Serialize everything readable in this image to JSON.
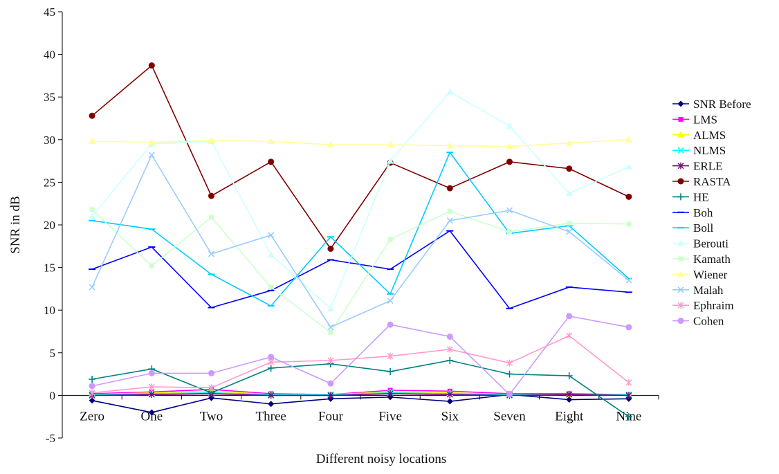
{
  "chart_data": {
    "type": "line",
    "title": "",
    "xlabel": "Different noisy locations",
    "ylabel": "SNR in dB",
    "ylim": [
      -5,
      45
    ],
    "yticks": [
      "-5",
      "0",
      "5",
      "10",
      "15",
      "20",
      "25",
      "30",
      "35",
      "40",
      "45"
    ],
    "categories": [
      "Zero",
      "One",
      "Two",
      "Three",
      "Four",
      "Five",
      "Six",
      "Seven",
      "Eight",
      "Nine"
    ],
    "grid": false,
    "legend_position": "right",
    "series": [
      {
        "name": "SNR Before",
        "color": "#000080",
        "marker": "diamond",
        "values": [
          -0.6,
          -2.0,
          -0.3,
          -1.0,
          -0.4,
          -0.2,
          -0.7,
          0.1,
          -0.5,
          -0.4
        ]
      },
      {
        "name": "LMS",
        "color": "#ff00ff",
        "marker": "square",
        "values": [
          0.2,
          0.4,
          0.7,
          0.2,
          0.1,
          0.6,
          0.5,
          0.2,
          0.2,
          0.1
        ]
      },
      {
        "name": "ALMS",
        "color": "#ffff00",
        "marker": "triangle",
        "values": [
          0.1,
          0.3,
          0.5,
          0.1,
          0.1,
          0.4,
          0.3,
          0.1,
          0.1,
          0.1
        ]
      },
      {
        "name": "NLMS",
        "color": "#00ffff",
        "marker": "x",
        "values": [
          0.1,
          0.2,
          0.3,
          0.1,
          0.1,
          0.3,
          0.2,
          0.1,
          0.1,
          0.1
        ]
      },
      {
        "name": "ERLE",
        "color": "#800080",
        "marker": "star",
        "values": [
          0.0,
          0.1,
          0.2,
          0.0,
          0.0,
          0.2,
          0.1,
          0.0,
          0.1,
          0.0
        ]
      },
      {
        "name": "RASTA",
        "color": "#800000",
        "marker": "circle",
        "values": [
          32.8,
          38.7,
          23.4,
          27.4,
          17.2,
          27.3,
          24.3,
          27.4,
          26.6,
          23.3
        ]
      },
      {
        "name": "HE",
        "color": "#008080",
        "marker": "plus",
        "values": [
          1.9,
          3.1,
          0.3,
          3.2,
          3.7,
          2.8,
          4.1,
          2.5,
          2.3,
          -2.5
        ]
      },
      {
        "name": "Boh",
        "color": "#0000ff",
        "marker": "dash",
        "values": [
          14.8,
          17.4,
          10.3,
          12.3,
          15.9,
          14.8,
          19.3,
          10.2,
          12.7,
          12.1
        ]
      },
      {
        "name": "Boll",
        "color": "#00ccff",
        "marker": "dash",
        "values": [
          20.5,
          19.5,
          14.2,
          10.5,
          18.6,
          11.9,
          28.5,
          19.0,
          19.9,
          13.7
        ]
      },
      {
        "name": "Berouti",
        "color": "#ccffff",
        "marker": "triangle",
        "values": [
          21.0,
          29.5,
          29.8,
          16.5,
          10.2,
          27.5,
          35.6,
          31.6,
          23.7,
          26.8
        ]
      },
      {
        "name": "Kamath",
        "color": "#ccffcc",
        "marker": "square",
        "values": [
          21.8,
          15.2,
          20.9,
          12.7,
          7.4,
          18.3,
          21.6,
          19.2,
          20.2,
          20.1
        ]
      },
      {
        "name": "Wiener",
        "color": "#ffff99",
        "marker": "triangle",
        "values": [
          29.8,
          29.7,
          29.9,
          29.8,
          29.4,
          29.4,
          29.3,
          29.2,
          29.6,
          30.0
        ]
      },
      {
        "name": "Malah",
        "color": "#99ccff",
        "marker": "x",
        "values": [
          12.7,
          28.2,
          16.6,
          18.8,
          8.0,
          11.1,
          20.5,
          21.7,
          19.2,
          13.5
        ]
      },
      {
        "name": "Ephraim",
        "color": "#ff99cc",
        "marker": "star",
        "values": [
          0.3,
          1.0,
          0.9,
          3.9,
          4.1,
          4.6,
          5.4,
          3.8,
          7.0,
          1.5
        ]
      },
      {
        "name": "Cohen",
        "color": "#cc99ff",
        "marker": "circle",
        "values": [
          1.1,
          2.6,
          2.6,
          4.5,
          1.4,
          8.3,
          6.9,
          0.1,
          9.3,
          8.0
        ]
      }
    ]
  }
}
